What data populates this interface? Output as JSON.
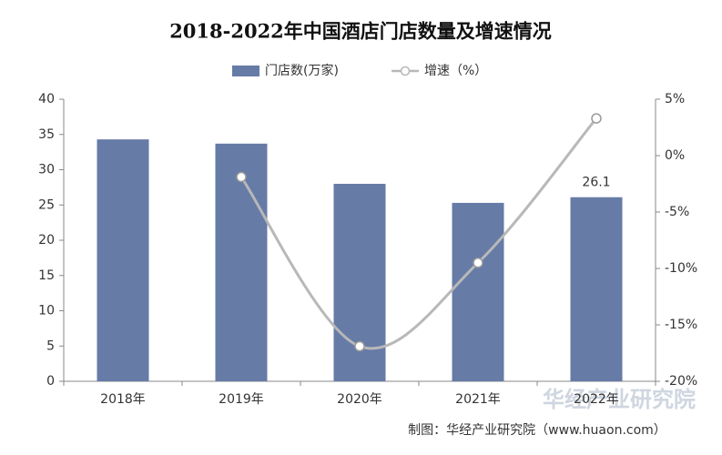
{
  "chart_data": {
    "type": "bar-line",
    "title": "2018-2022年中国酒店门店数量及增速情况",
    "categories": [
      "2018年",
      "2019年",
      "2020年",
      "2021年",
      "2022年"
    ],
    "series": [
      {
        "name": "门店数(万家)",
        "type": "bar",
        "color": "#667ba6",
        "values": [
          34.3,
          33.7,
          28.0,
          25.3,
          26.1
        ],
        "value_labels": [
          null,
          null,
          null,
          null,
          "26.1"
        ]
      },
      {
        "name": "增速（%）",
        "type": "line",
        "axis": "y2",
        "color": "#b8b8b8",
        "values": [
          null,
          -1.9,
          -16.9,
          -9.5,
          3.3
        ]
      }
    ],
    "ylim": [
      0,
      40
    ],
    "yticks": [
      0,
      5,
      10,
      15,
      20,
      25,
      30,
      35,
      40
    ],
    "y2lim": [
      -20,
      5
    ],
    "y2ticks": [
      {
        "value": -20,
        "label": "-20%"
      },
      {
        "value": -15,
        "label": "-15%"
      },
      {
        "value": -10,
        "label": "-10%"
      },
      {
        "value": -5,
        "label": "-5%"
      },
      {
        "value": 0,
        "label": "0%"
      },
      {
        "value": 5,
        "label": "5%"
      }
    ],
    "legend": "top",
    "source": "制图：华经产业研究院（www.huaon.com）",
    "watermark": "华经产业研究院"
  }
}
